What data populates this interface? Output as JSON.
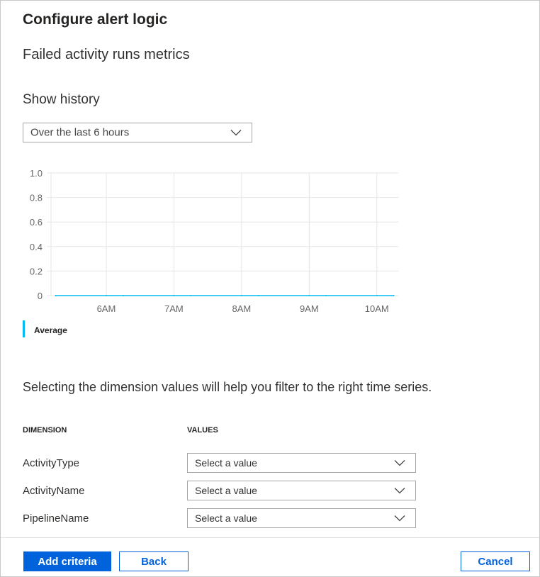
{
  "header": {
    "title": "Configure alert logic",
    "subtitle": "Failed activity runs metrics"
  },
  "history": {
    "label": "Show history",
    "selected": "Over the last 6 hours"
  },
  "chart_data": {
    "type": "line",
    "x": [
      "5:15",
      "6:00",
      "6:15",
      "7:00",
      "7:15",
      "8:00",
      "8:15",
      "9:00",
      "9:15",
      "10:00",
      "10:15"
    ],
    "series": [
      {
        "name": "Average",
        "values": [
          0,
          0,
          0,
          0,
          0,
          0,
          0,
          0,
          0,
          0,
          0
        ],
        "color": "#00bcf2"
      }
    ],
    "x_ticks": [
      "6AM",
      "7AM",
      "8AM",
      "9AM",
      "10AM"
    ],
    "y_ticks": [
      "0",
      "0.2",
      "0.4",
      "0.6",
      "0.8",
      "1.0"
    ],
    "ylim": [
      0,
      1
    ],
    "xlim": [
      "5:11",
      "10:19"
    ],
    "grid": true,
    "legend": "bottom-left"
  },
  "legend": {
    "label": "Average",
    "color": "#00bcf2"
  },
  "dimensions": {
    "hint": "Selecting the dimension values will help you filter to the right time series.",
    "col_dimension": "DIMENSION",
    "col_values": "VALUES",
    "rows": [
      {
        "name": "ActivityType",
        "value": "Select a value"
      },
      {
        "name": "ActivityName",
        "value": "Select a value"
      },
      {
        "name": "PipelineName",
        "value": "Select a value"
      }
    ]
  },
  "footer": {
    "add": "Add criteria",
    "back": "Back",
    "cancel": "Cancel"
  },
  "colors": {
    "primary": "#0063dc"
  }
}
